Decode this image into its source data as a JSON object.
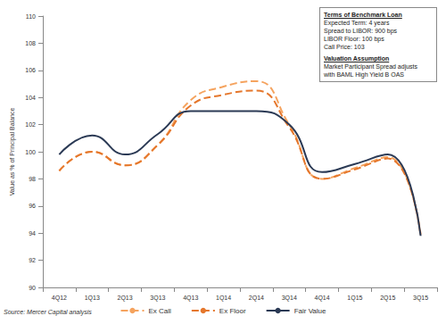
{
  "chart_data": {
    "type": "line",
    "categories": [
      "4Q12",
      "1Q13",
      "2Q13",
      "3Q13",
      "4Q13",
      "1Q14",
      "2Q14",
      "3Q14",
      "4Q14",
      "1Q15",
      "2Q15",
      "3Q15"
    ],
    "series": [
      {
        "name": "Ex Call",
        "color": "#f5a35e",
        "line_style": "dashed",
        "marker": "none",
        "values": [
          98.6,
          100.0,
          99.0,
          100.5,
          103.8,
          104.8,
          105.2,
          102.0,
          98.0,
          98.8,
          99.6,
          93.8
        ]
      },
      {
        "name": "Ex Floor",
        "color": "#e5772c",
        "line_style": "dashed",
        "marker": "none",
        "values": [
          98.6,
          100.0,
          99.0,
          100.5,
          103.4,
          104.2,
          104.5,
          101.8,
          98.0,
          98.7,
          99.5,
          93.9
        ]
      },
      {
        "name": "Fair Value",
        "color": "#2b3a55",
        "line_style": "solid",
        "marker": "none",
        "values": [
          99.8,
          101.2,
          99.8,
          101.3,
          103.0,
          103.0,
          103.0,
          102.0,
          98.5,
          99.1,
          99.8,
          93.8
        ]
      }
    ],
    "y_label": "Value as % of Principal Balance",
    "ylim": [
      90,
      110
    ],
    "yticks": [
      90,
      92,
      94,
      96,
      98,
      100,
      102,
      104,
      106,
      108,
      110
    ],
    "grid": false,
    "legend": "bottom",
    "source": "Source: Mercer Capital analysis",
    "annotations": [
      {
        "heading": "Terms of Benchmark Loan",
        "lines": [
          "Expected Term: 4 years",
          "Spread to LIBOR: 900 bps",
          "LIBOR Floor: 100 bps",
          "Call Price: 103"
        ]
      },
      {
        "heading": "Valuation Assumption",
        "lines": [
          "Market Participant Spread adjusts",
          "with BAML High Yield B OAS"
        ]
      }
    ]
  }
}
